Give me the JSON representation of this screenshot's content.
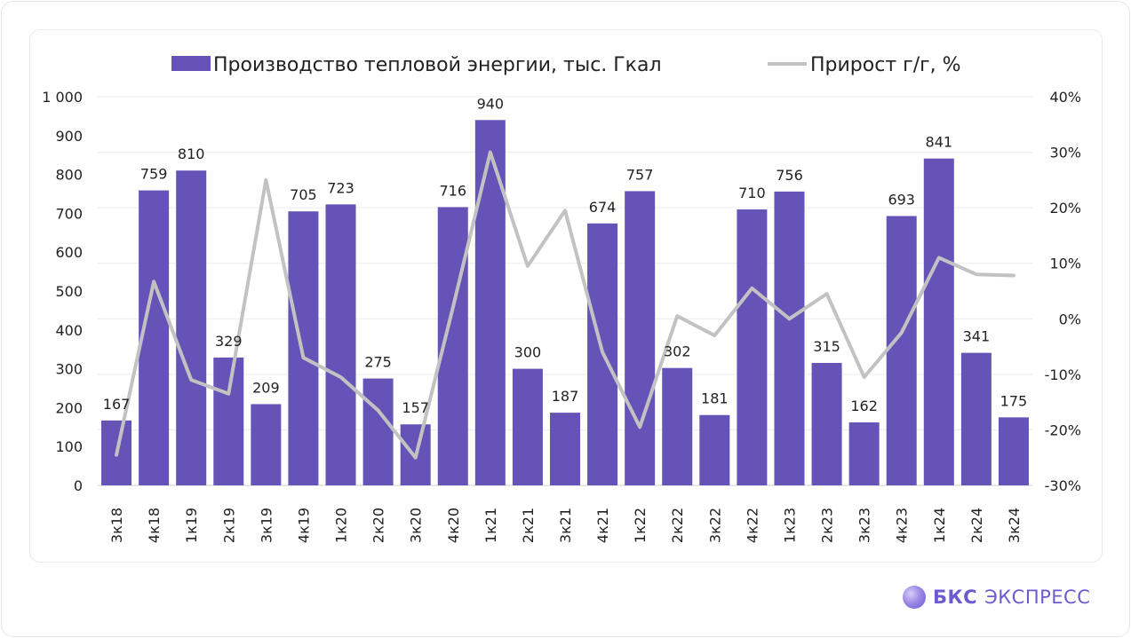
{
  "chart_data": {
    "type": "bar",
    "categories": [
      "3к18",
      "4к18",
      "1к19",
      "2к19",
      "3к19",
      "4к19",
      "1к20",
      "2к20",
      "3к20",
      "4к20",
      "1к21",
      "2к21",
      "3к21",
      "4к21",
      "1к22",
      "2к22",
      "3к22",
      "4к22",
      "1к23",
      "2к23",
      "3к23",
      "4к23",
      "1к24",
      "2к24",
      "3к24"
    ],
    "series": [
      {
        "name": "Производство тепловой энергии, тыс. Гкал",
        "type": "bar",
        "axis": "left",
        "values": [
          167,
          759,
          810,
          329,
          209,
          705,
          723,
          275,
          157,
          716,
          940,
          300,
          187,
          674,
          757,
          302,
          181,
          710,
          756,
          315,
          162,
          693,
          841,
          341,
          175
        ],
        "labels": [
          "167",
          "759",
          "810",
          "329",
          "209",
          "705",
          "723",
          "275",
          "157",
          "716",
          "940",
          "300",
          "187",
          "674",
          "757",
          "302",
          "181",
          "710",
          "756",
          "315",
          "162",
          "693",
          "841",
          "341",
          "175"
        ]
      },
      {
        "name": "Прирост г/г, %",
        "type": "line",
        "axis": "right",
        "values": [
          -24.5,
          6.7,
          -11,
          -13.5,
          25,
          -7,
          -10.5,
          -16.5,
          -25,
          2,
          30,
          9.5,
          19.5,
          -6,
          -19.5,
          0.5,
          -3,
          5.5,
          0,
          4.5,
          -10.5,
          -2.5,
          11,
          8,
          7.8
        ]
      }
    ],
    "y_left": {
      "min": 0,
      "max": 1000,
      "ticks": [
        "0",
        "100",
        "200",
        "300",
        "400",
        "500",
        "600",
        "700",
        "800",
        "900",
        "1 000"
      ]
    },
    "y_right": {
      "min": -30,
      "max": 40,
      "ticks": [
        "-30%",
        "-20%",
        "-10%",
        "0%",
        "10%",
        "20%",
        "30%",
        "40%"
      ]
    },
    "legend_position": "top",
    "grid": true,
    "colors": {
      "bar": "#6653b8",
      "line": "#c2c2c2",
      "grid": "#ececec",
      "text": "#222222"
    }
  },
  "brand": {
    "name": "БКС",
    "sub": "ЭКСПРЕСС"
  }
}
